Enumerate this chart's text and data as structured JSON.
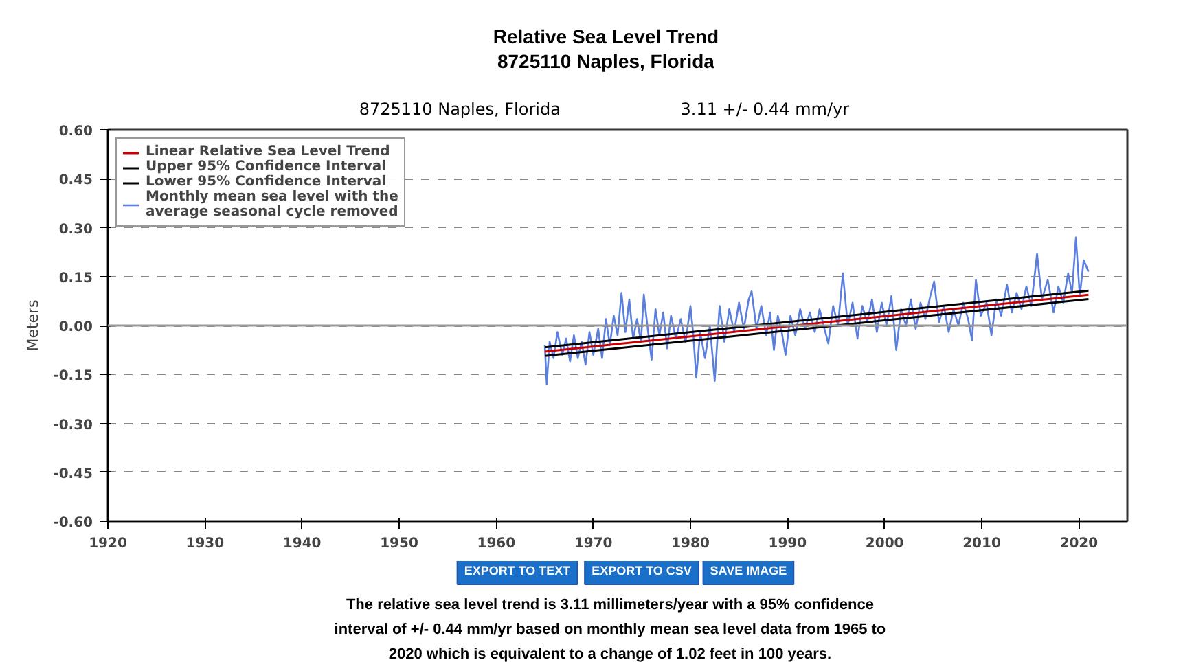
{
  "chart_data": {
    "type": "line",
    "title": "Relative Sea Level Trend",
    "subtitle": "8725110 Naples, Florida",
    "ylabel": "Meters",
    "annotations": [
      "8725110 Naples, Florida",
      "3.11 +/- 0.44 mm/yr",
      "EXPORT TO TEXT",
      "EXPORT TO CSV",
      "SAVE IMAGE",
      "The relative sea level trend is 3.11 millimeters/year with a 95% confidence interval of +/- 0.44 mm/yr based on monthly mean sea level data from 1965 to 2020 which is equivalent to a change of 1.02 feet in 100 years."
    ],
    "xlim": [
      1920,
      2025
    ],
    "xticks": [
      1920,
      1930,
      1940,
      1950,
      1960,
      1970,
      1980,
      1990,
      2000,
      2010,
      2020
    ],
    "ylim": [
      -0.6,
      0.6
    ],
    "yticks": [
      {
        "value": -0.6,
        "label": "-0.60"
      },
      {
        "value": -0.45,
        "label": "-0.45"
      },
      {
        "value": -0.3,
        "label": "-0.30"
      },
      {
        "value": -0.15,
        "label": "-0.15"
      },
      {
        "value": 0,
        "label": "0.00"
      },
      {
        "value": 0.15,
        "label": "0.15"
      },
      {
        "value": 0.3,
        "label": "0.30"
      },
      {
        "value": 0.45,
        "label": "0.45"
      },
      {
        "value": 0.6,
        "label": "0.60"
      }
    ],
    "grid": "y",
    "legend": "top left",
    "line_style": "solid",
    "ref_lines": [
      {
        "axis": "y",
        "value": 0,
        "label": null,
        "color": "#999999",
        "line_style": "solid"
      }
    ],
    "series": [
      {
        "name": "Linear Relative Sea Level Trend",
        "color": "#cc0000",
        "x": [
          1965,
          2021
        ],
        "values": [
          -0.08,
          0.094
        ]
      },
      {
        "name": "Upper 95% Confidence Interval",
        "color": "#000000",
        "x": [
          1965,
          2021
        ],
        "values": [
          -0.067,
          0.107
        ]
      },
      {
        "name": "Lower 95% Confidence Interval",
        "color": "#000000",
        "x": [
          1965,
          2021
        ],
        "values": [
          -0.093,
          0.081
        ]
      },
      {
        "name": "Monthly mean sea level with the average seasonal cycle removed",
        "color": "#5b7fde",
        "x": [
          1965.0,
          1965.2,
          1965.5,
          1965.9,
          1966.3,
          1966.8,
          1967.2,
          1967.6,
          1968.0,
          1968.4,
          1968.8,
          1969.2,
          1969.6,
          1970.0,
          1970.5,
          1970.9,
          1971.3,
          1971.7,
          1972.1,
          1972.5,
          1972.9,
          1973.3,
          1973.7,
          1974.1,
          1974.5,
          1974.9,
          1975.2,
          1975.6,
          1976.0,
          1976.4,
          1976.8,
          1977.2,
          1977.6,
          1978.0,
          1978.5,
          1979.0,
          1979.5,
          1980.0,
          1980.3,
          1980.6,
          1981.0,
          1981.5,
          1982.0,
          1982.5,
          1983.0,
          1983.5,
          1984.0,
          1984.5,
          1985.0,
          1985.5,
          1986.0,
          1986.3,
          1986.8,
          1987.3,
          1987.8,
          1988.2,
          1988.6,
          1989.0,
          1989.4,
          1989.8,
          1990.3,
          1990.8,
          1991.3,
          1991.8,
          1992.3,
          1992.8,
          1993.3,
          1993.8,
          1994.2,
          1994.7,
          1995.2,
          1995.7,
          1996.2,
          1996.7,
          1997.2,
          1997.7,
          1998.2,
          1998.7,
          1999.2,
          1999.7,
          2000.2,
          2000.7,
          2001.2,
          2001.7,
          2002.2,
          2002.7,
          2003.2,
          2003.7,
          2004.2,
          2004.7,
          2005.1,
          2005.6,
          2006.1,
          2006.6,
          2007.1,
          2007.6,
          2008.1,
          2008.6,
          2009.0,
          2009.4,
          2009.9,
          2010.5,
          2011.0,
          2011.5,
          2012.0,
          2012.6,
          2013.1,
          2013.6,
          2014.1,
          2014.6,
          2015.1,
          2015.7,
          2016.2,
          2016.8,
          2017.4,
          2017.9,
          2018.4,
          2018.9,
          2019.3,
          2019.7,
          2020.1,
          2020.5,
          2021.0
        ],
        "values": [
          -0.06,
          -0.18,
          -0.05,
          -0.1,
          -0.02,
          -0.09,
          -0.04,
          -0.11,
          -0.03,
          -0.1,
          -0.05,
          -0.12,
          -0.02,
          -0.09,
          -0.01,
          -0.1,
          0.02,
          -0.06,
          0.03,
          -0.03,
          0.1,
          -0.02,
          0.08,
          -0.04,
          0.02,
          -0.05,
          0.095,
          -0.01,
          -0.105,
          0.05,
          -0.03,
          0.04,
          -0.07,
          0.03,
          -0.04,
          0.02,
          -0.05,
          0.06,
          -0.03,
          -0.16,
          -0.02,
          -0.1,
          0.0,
          -0.17,
          0.06,
          -0.05,
          0.05,
          -0.02,
          0.07,
          -0.01,
          0.08,
          0.105,
          -0.01,
          0.06,
          -0.03,
          0.04,
          -0.075,
          0.03,
          -0.02,
          -0.09,
          0.03,
          -0.03,
          0.05,
          -0.01,
          0.04,
          -0.02,
          0.05,
          -0.01,
          -0.055,
          0.06,
          0.0,
          0.16,
          0.0,
          0.07,
          -0.04,
          0.06,
          0.01,
          0.08,
          -0.02,
          0.07,
          0.0,
          0.09,
          -0.075,
          0.05,
          0.0,
          0.08,
          -0.01,
          0.07,
          0.02,
          0.09,
          0.135,
          0.01,
          0.06,
          -0.02,
          0.05,
          0.0,
          0.07,
          0.02,
          -0.045,
          0.14,
          0.03,
          0.07,
          -0.03,
          0.08,
          0.03,
          0.125,
          0.04,
          0.1,
          0.05,
          0.12,
          0.06,
          0.22,
          0.08,
          0.14,
          0.04,
          0.12,
          0.07,
          0.16,
          0.1,
          0.27,
          0.09,
          0.2,
          0.165
        ]
      }
    ]
  }
}
